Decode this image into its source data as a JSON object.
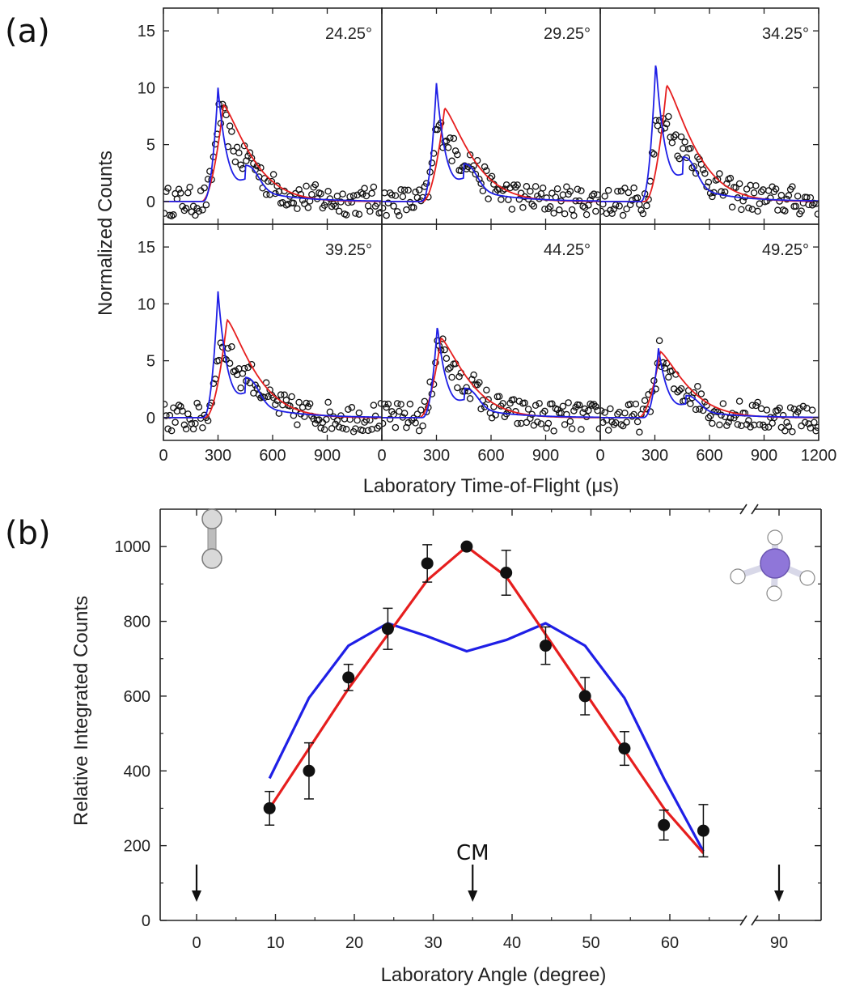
{
  "panel_a_label": "(a)",
  "panel_b_label": "(b)",
  "colors": {
    "model_blue": "#1f1fe6",
    "model_red": "#e61e1e",
    "points": "#111111",
    "frame": "#222222"
  },
  "chart_data": [
    {
      "type": "scatter",
      "panel": "(a)",
      "xlabel": "Laboratory Time-of-Flight (μs)",
      "ylabel": "Normalized Counts",
      "xlim": [
        0,
        1200
      ],
      "ylim": [
        -2,
        17
      ],
      "xticks": [
        "0",
        "300",
        "600",
        "900",
        "0",
        "300",
        "600",
        "900",
        "0",
        "300",
        "600",
        "900",
        "1200"
      ],
      "yticks": [
        "0",
        "5",
        "10",
        "15"
      ],
      "subplots": [
        {
          "angle": "24.25°",
          "blue_peak": [
            300,
            10.0
          ],
          "red_peak": [
            330,
            8.5
          ],
          "scatter_amp": 9.5
        },
        {
          "angle": "29.25°",
          "blue_peak": [
            300,
            10.4
          ],
          "red_peak": [
            345,
            8.2
          ],
          "scatter_amp": 9.0
        },
        {
          "angle": "34.25°",
          "blue_peak": [
            305,
            12.3
          ],
          "red_peak": [
            365,
            10.2
          ],
          "scatter_amp": 11.0
        },
        {
          "angle": "39.25°",
          "blue_peak": [
            300,
            11.1
          ],
          "red_peak": [
            350,
            8.6
          ],
          "scatter_amp": 9.0
        },
        {
          "angle": "44.25°",
          "blue_peak": [
            305,
            8.1
          ],
          "red_peak": [
            325,
            7.0
          ],
          "scatter_amp": 8.0
        },
        {
          "angle": "49.25°",
          "blue_peak": [
            320,
            6.1
          ],
          "red_peak": [
            330,
            5.8
          ],
          "scatter_amp": 6.0
        }
      ]
    },
    {
      "type": "line",
      "panel": "(b)",
      "xlabel": "Laboratory Angle (degree)",
      "ylabel": "Relative Integrated Counts",
      "ylim": [
        0,
        1100
      ],
      "xticks": [
        "0",
        "10",
        "20",
        "30",
        "40",
        "50",
        "60",
        "90"
      ],
      "yticks": [
        "0",
        "200",
        "400",
        "600",
        "800",
        "1000"
      ],
      "points": {
        "x": [
          9.25,
          14.25,
          19.25,
          24.25,
          29.25,
          34.25,
          39.25,
          44.25,
          49.25,
          54.25,
          59.25,
          64.25
        ],
        "y": [
          300,
          400,
          650,
          780,
          955,
          1000,
          930,
          735,
          600,
          460,
          255,
          240
        ],
        "err": [
          45,
          75,
          35,
          55,
          50,
          0,
          60,
          50,
          50,
          45,
          40,
          70
        ]
      },
      "red_fit": {
        "x": [
          9.25,
          19.25,
          29.25,
          34.25,
          39.25,
          49.25,
          59.25,
          64.25
        ],
        "y": [
          300,
          620,
          910,
          1000,
          920,
          610,
          300,
          180
        ]
      },
      "blue_fit": {
        "x": [
          9.25,
          14.25,
          19.25,
          24.25,
          29.25,
          34.25,
          39.25,
          44.25,
          49.25,
          54.25,
          59.25,
          64.25
        ],
        "y": [
          380,
          595,
          735,
          795,
          760,
          720,
          750,
          795,
          735,
          595,
          380,
          185
        ]
      },
      "annotations": {
        "cm_label": "CM",
        "cm_angle": 35,
        "arrow_angles": [
          0,
          35,
          90
        ]
      }
    }
  ]
}
